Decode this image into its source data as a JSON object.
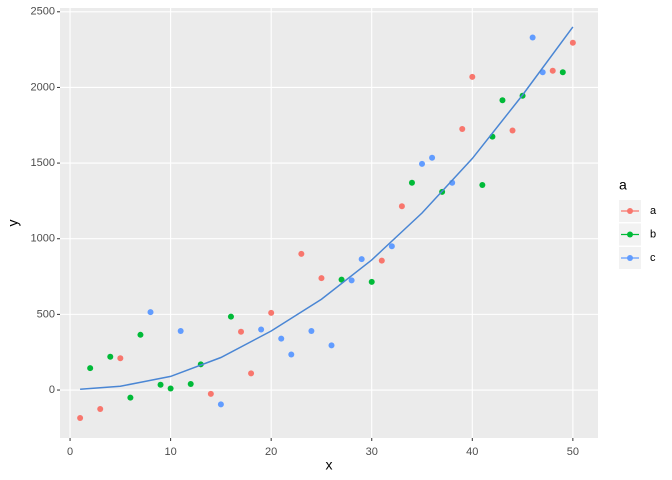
{
  "chart_data": {
    "type": "scatter",
    "x_label": "x",
    "y_label": "y",
    "legend_title": "a",
    "xlim": [
      -1,
      52.5
    ],
    "ylim": [
      -317,
      2525
    ],
    "xticks": [
      0,
      10,
      20,
      30,
      40,
      50
    ],
    "yticks": [
      0,
      500,
      1000,
      1500,
      2000,
      2500
    ],
    "grid": true,
    "legend_position": "right",
    "series": [
      {
        "name": "a",
        "color": "#f8766d",
        "x": [
          1,
          3,
          5,
          14,
          17,
          18,
          20,
          23,
          25,
          31,
          33,
          39,
          40,
          44,
          48,
          50
        ],
        "values": [
          -185,
          -125,
          210,
          -25,
          385,
          110,
          510,
          900,
          740,
          855,
          1215,
          1725,
          2070,
          1715,
          2110,
          2295
        ]
      },
      {
        "name": "b",
        "color": "#00ba38",
        "x": [
          2,
          4,
          6,
          7,
          9,
          10,
          12,
          13,
          16,
          27,
          30,
          34,
          37,
          41,
          42,
          43,
          45,
          49
        ],
        "values": [
          145,
          220,
          -50,
          365,
          35,
          10,
          40,
          170,
          485,
          730,
          715,
          1370,
          1310,
          1355,
          1675,
          1915,
          1945,
          2100
        ]
      },
      {
        "name": "c",
        "color": "#619cff",
        "x": [
          8,
          11,
          15,
          19,
          21,
          22,
          24,
          26,
          28,
          29,
          32,
          35,
          36,
          38,
          46,
          47
        ],
        "values": [
          515,
          390,
          -95,
          400,
          340,
          235,
          390,
          295,
          725,
          865,
          950,
          1495,
          1535,
          1370,
          2330,
          2100
        ]
      }
    ],
    "curve": {
      "color": "#4a86d4",
      "x": [
        1,
        5,
        10,
        15,
        20,
        25,
        30,
        35,
        40,
        45,
        50
      ],
      "values": [
        5,
        25,
        90,
        215,
        390,
        600,
        860,
        1170,
        1530,
        1950,
        2400
      ]
    }
  }
}
